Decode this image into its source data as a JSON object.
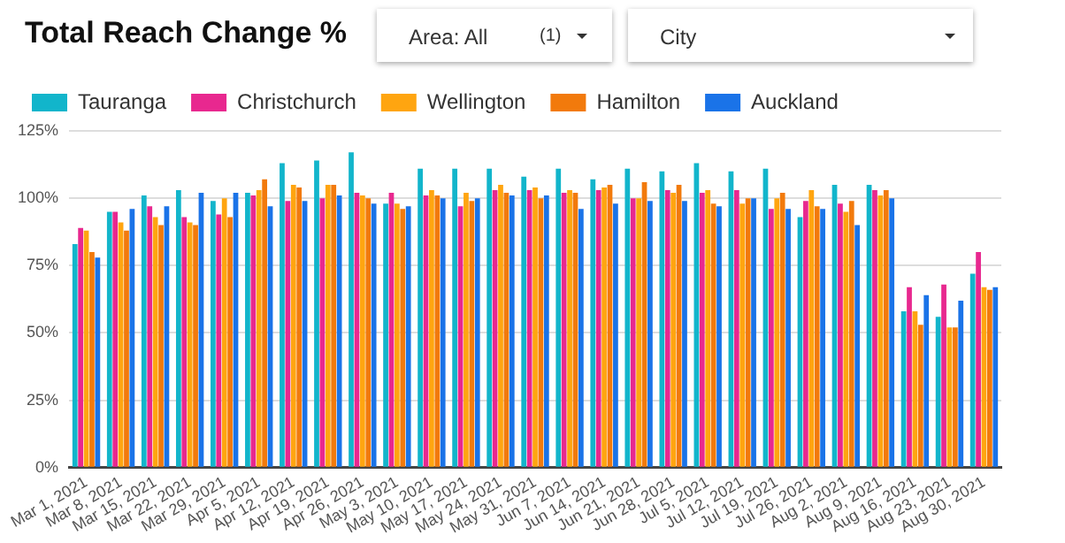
{
  "chart_data": {
    "type": "bar",
    "title": "Total Reach Change %",
    "annotations": [
      "Area: All",
      "(1)",
      "City"
    ],
    "categories": [
      "Mar 1, 2021",
      "Mar 8, 2021",
      "Mar 15, 2021",
      "Mar 22, 2021",
      "Mar 29, 2021",
      "Apr 5, 2021",
      "Apr 12, 2021",
      "Apr 19, 2021",
      "Apr 26, 2021",
      "May 3, 2021",
      "May 10, 2021",
      "May 17, 2021",
      "May 24, 2021",
      "May 31, 2021",
      "Jun 7, 2021",
      "Jun 14, 2021",
      "Jun 21, 2021",
      "Jun 28, 2021",
      "Jul 5, 2021",
      "Jul 12, 2021",
      "Jul 19, 2021",
      "Jul 26, 2021",
      "Aug 2, 2021",
      "Aug 9, 2021",
      "Aug 16, 2021",
      "Aug 23, 2021",
      "Aug 30, 2021"
    ],
    "series": [
      {
        "name": "Tauranga",
        "color": "#12b5cb",
        "values": [
          83,
          95,
          101,
          103,
          99,
          102,
          113,
          114,
          117,
          98,
          111,
          111,
          111,
          108,
          111,
          107,
          111,
          110,
          113,
          110,
          111,
          93,
          105,
          105,
          58,
          56,
          72
        ]
      },
      {
        "name": "Christchurch",
        "color": "#e8288f",
        "values": [
          89,
          95,
          97,
          93,
          94,
          101,
          99,
          100,
          102,
          102,
          101,
          97,
          103,
          103,
          102,
          103,
          100,
          103,
          102,
          103,
          96,
          99,
          98,
          103,
          67,
          68,
          80
        ]
      },
      {
        "name": "Wellington",
        "color": "#ffa510",
        "values": [
          88,
          91,
          93,
          91,
          100,
          103,
          105,
          105,
          101,
          98,
          103,
          102,
          105,
          104,
          103,
          104,
          100,
          102,
          103,
          98,
          100,
          103,
          95,
          101,
          58,
          52,
          67
        ]
      },
      {
        "name": "Hamilton",
        "color": "#f27a0c",
        "values": [
          80,
          88,
          90,
          90,
          93,
          107,
          104,
          105,
          100,
          96,
          101,
          99,
          102,
          100,
          102,
          105,
          106,
          105,
          98,
          100,
          102,
          97,
          99,
          103,
          53,
          52,
          66
        ]
      },
      {
        "name": "Auckland",
        "color": "#1a73e8",
        "values": [
          78,
          96,
          97,
          102,
          102,
          97,
          99,
          101,
          98,
          97,
          100,
          100,
          101,
          101,
          96,
          98,
          99,
          99,
          97,
          100,
          96,
          96,
          90,
          100,
          64,
          62,
          67
        ]
      }
    ],
    "ylim": [
      0,
      125
    ],
    "yticks": [
      {
        "value": 0,
        "label": "0%"
      },
      {
        "value": 25,
        "label": "25%"
      },
      {
        "value": 50,
        "label": "50%"
      },
      {
        "value": 75,
        "label": "75%"
      },
      {
        "value": 100,
        "label": "100%"
      },
      {
        "value": 125,
        "label": "125%"
      }
    ],
    "grid": "y",
    "legend": "top"
  }
}
